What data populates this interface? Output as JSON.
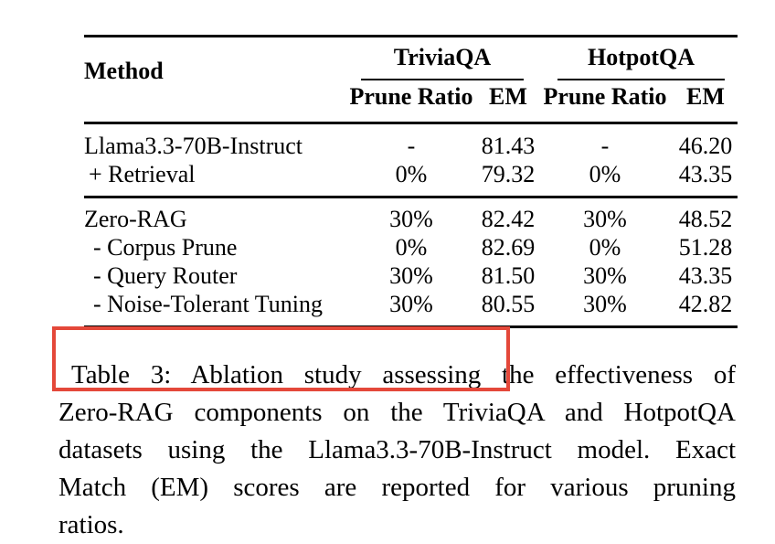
{
  "table": {
    "method_header": "Method",
    "groups": [
      {
        "label": "TriviaQA"
      },
      {
        "label": "HotpotQA"
      }
    ],
    "sub_headers": [
      "Prune Ratio",
      "EM",
      "Prune Ratio",
      "EM"
    ],
    "rows_block1": [
      {
        "method": "Llama3.3-70B-Instruct",
        "indent": 0,
        "cells": [
          "-",
          "81.43",
          "-",
          "46.20"
        ]
      },
      {
        "method": "+ Retrieval",
        "indent": 1,
        "cells": [
          "0%",
          "79.32",
          "0%",
          "43.35"
        ]
      }
    ],
    "rows_block2": [
      {
        "method": "Zero-RAG",
        "indent": 0,
        "cells": [
          "30%",
          "82.42",
          "30%",
          "48.52"
        ]
      },
      {
        "method": "- Corpus Prune",
        "indent": 2,
        "cells": [
          "0%",
          "82.69",
          "0%",
          "51.28"
        ]
      },
      {
        "method": "- Query Router",
        "indent": 2,
        "cells": [
          "30%",
          "81.50",
          "30%",
          "43.35"
        ]
      },
      {
        "method": "- Noise-Tolerant Tuning",
        "indent": 2,
        "cells": [
          "30%",
          "80.55",
          "30%",
          "42.82"
        ]
      }
    ]
  },
  "caption": {
    "lines": [
      "Table 3: Ablation study assessing the effectiveness of",
      "Zero-RAG components on the TriviaQA and HotpotQA",
      "datasets using the Llama3.3-70B-Instruct model. Exact",
      "Match (EM) scores are reported for various pruning",
      "ratios."
    ]
  },
  "annotation": {
    "box_color": "#e4483a"
  },
  "colors": {
    "text": "#000000",
    "background": "#ffffff",
    "rule": "#000000"
  },
  "chart_data": {
    "type": "table",
    "title": "Table 3: Ablation study of Zero-RAG components",
    "columns": [
      "Method",
      "TriviaQA Prune Ratio",
      "TriviaQA EM",
      "HotpotQA Prune Ratio",
      "HotpotQA EM"
    ],
    "rows": [
      [
        "Llama3.3-70B-Instruct",
        "-",
        81.43,
        "-",
        46.2
      ],
      [
        "+ Retrieval",
        "0%",
        79.32,
        "0%",
        43.35
      ],
      [
        "Zero-RAG",
        "30%",
        82.42,
        "30%",
        48.52
      ],
      [
        "- Corpus Prune",
        "0%",
        82.69,
        "0%",
        51.28
      ],
      [
        "- Query Router",
        "30%",
        81.5,
        "30%",
        43.35
      ],
      [
        "- Noise-Tolerant Tuning",
        "30%",
        80.55,
        "30%",
        42.82
      ]
    ]
  }
}
